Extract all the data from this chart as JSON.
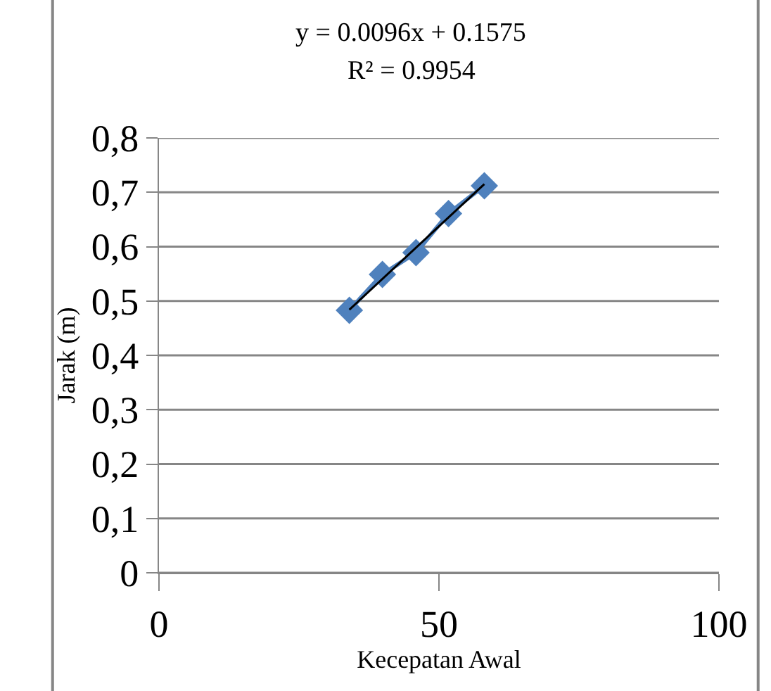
{
  "chart_data": {
    "type": "line",
    "xlabel": "Kecepatan Awal",
    "ylabel": "Jarak (m)",
    "annotations": [
      "y = 0.0096x + 0.1575",
      "R² = 0.9954"
    ],
    "series": [
      {
        "color": "#4f81bd",
        "marker": "diamond",
        "x": [
          34.0,
          39.9,
          45.9,
          51.7,
          58.1
        ],
        "values": [
          0.483,
          0.549,
          0.589,
          0.661,
          0.712
        ]
      },
      {
        "color": "#000000",
        "marker": "none",
        "x": [
          34.0,
          58.1
        ],
        "values": [
          0.484,
          0.715
        ]
      }
    ],
    "xlim": [
      0,
      100
    ],
    "xticks": [
      0,
      50,
      100
    ],
    "ylim": [
      0,
      0.8
    ],
    "yticks": [
      {
        "value": 0,
        "label": "0"
      },
      {
        "value": 0.1,
        "label": "0,1"
      },
      {
        "value": 0.2,
        "label": "0,2"
      },
      {
        "value": 0.3,
        "label": "0,3"
      },
      {
        "value": 0.4,
        "label": "0,4"
      },
      {
        "value": 0.5,
        "label": "0,5"
      },
      {
        "value": 0.6,
        "label": "0,6"
      },
      {
        "value": 0.7,
        "label": "0,7"
      },
      {
        "value": 0.8,
        "label": "0,8"
      }
    ],
    "grid": "y"
  }
}
